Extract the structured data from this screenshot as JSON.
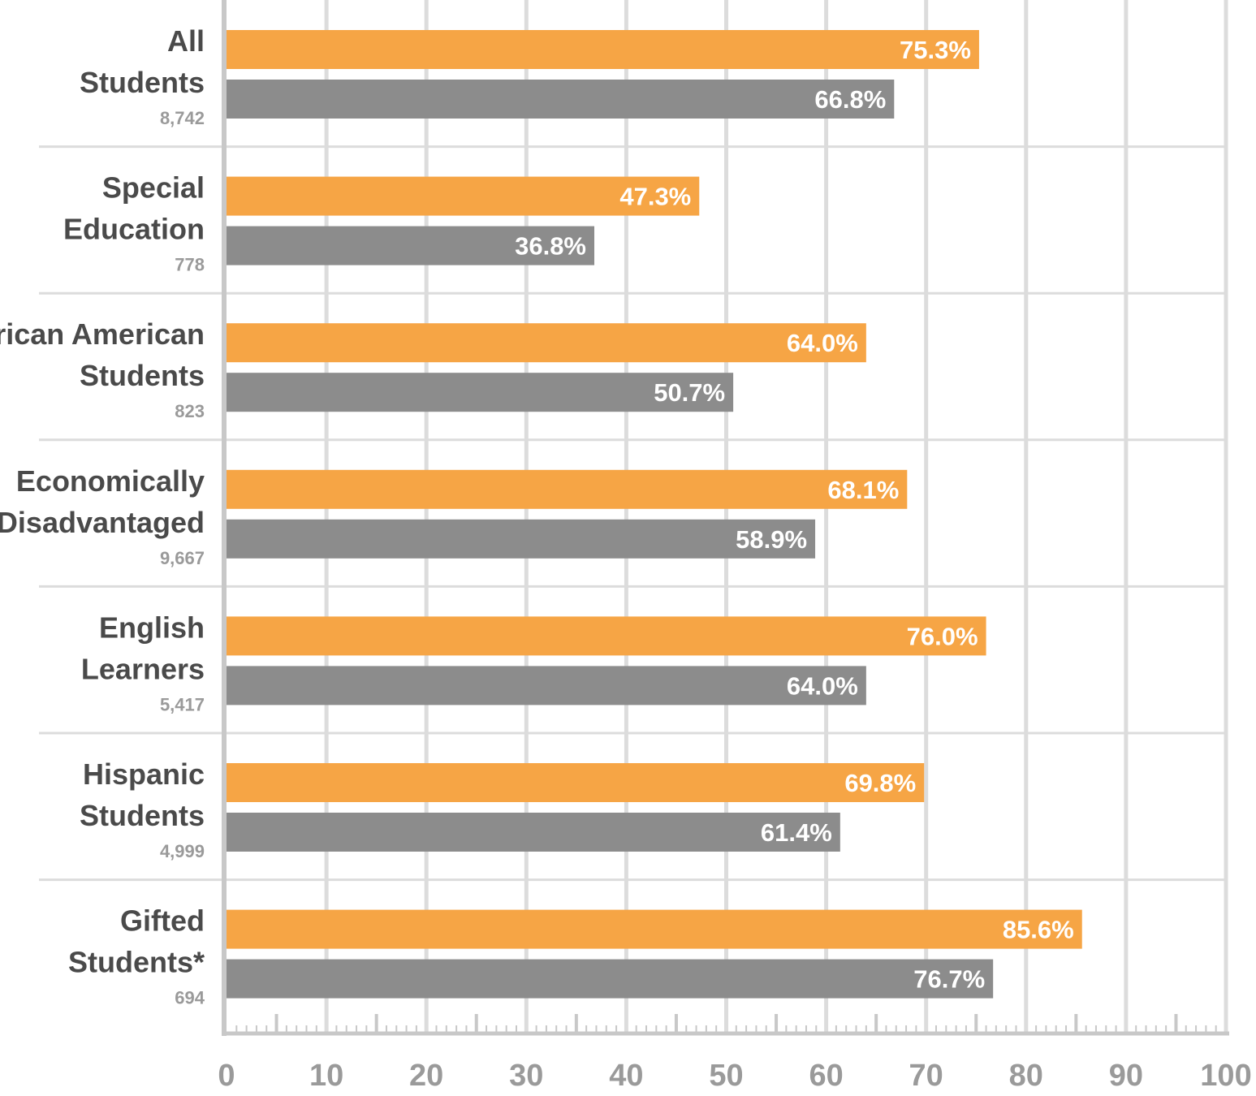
{
  "chart_data": {
    "type": "bar",
    "orientation": "horizontal",
    "xlim": [
      0,
      100
    ],
    "xticks": [
      0,
      10,
      20,
      30,
      40,
      50,
      60,
      70,
      80,
      90,
      100
    ],
    "grid": true,
    "colors": {
      "series1": "#f6a545",
      "series2": "#8c8c8c",
      "grid": "#dcdcdc",
      "axis": "#c8c8c8"
    },
    "categories": [
      {
        "line1": "All",
        "line2": "Students",
        "count": "8,742"
      },
      {
        "line1": "Special",
        "line2": "Education",
        "count": "778"
      },
      {
        "line1": "African American",
        "line2": "Students",
        "count": "823"
      },
      {
        "line1": "Economically",
        "line2": "Disadvantaged",
        "count": "9,667"
      },
      {
        "line1": "English",
        "line2": "Learners",
        "count": "5,417"
      },
      {
        "line1": "Hispanic",
        "line2": "Students",
        "count": "4,999"
      },
      {
        "line1": "Gifted",
        "line2": "Students*",
        "count": "694"
      }
    ],
    "series": [
      {
        "name": "series-orange",
        "values": [
          75.3,
          47.3,
          64.0,
          68.1,
          76.0,
          69.8,
          85.6
        ],
        "labels": [
          "75.3%",
          "47.3%",
          "64.0%",
          "68.1%",
          "76.0%",
          "69.8%",
          "85.6%"
        ]
      },
      {
        "name": "series-gray",
        "values": [
          66.8,
          36.8,
          50.7,
          58.9,
          64.0,
          61.4,
          76.7
        ],
        "labels": [
          "66.8%",
          "36.8%",
          "50.7%",
          "58.9%",
          "64.0%",
          "61.4%",
          "76.7%"
        ]
      }
    ]
  }
}
